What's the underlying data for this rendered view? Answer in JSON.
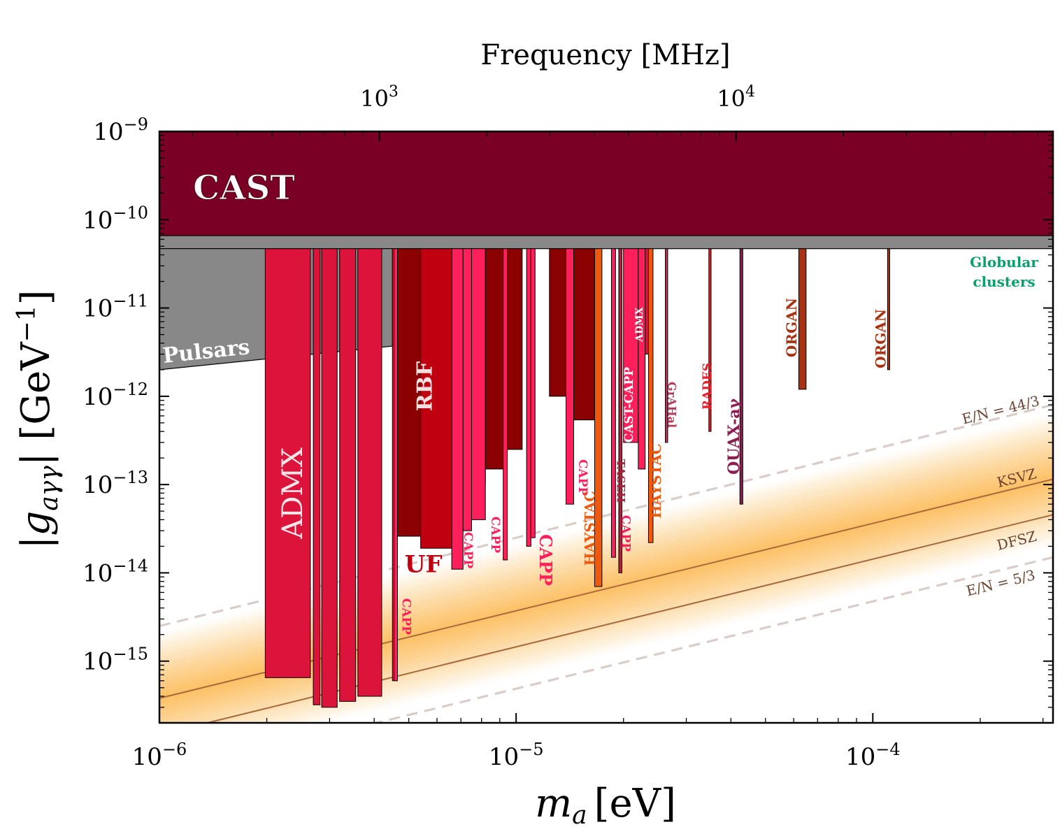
{
  "chart_data": {
    "type": "area",
    "x_scale": "log",
    "y_scale": "log",
    "xlim": [
      1e-06,
      0.00032
    ],
    "ylim": [
      2e-16,
      1e-09
    ],
    "xlabel_main": "m",
    "xlabel_sub": "a",
    "xlabel_unit": "[eV]",
    "ylabel_text": "|g",
    "ylabel_sub": "aγγ",
    "ylabel_unit": "| [GeV",
    "ylabel_unit_exp": "−1",
    "ylabel_unit_close": "]",
    "top_axis_label": "Frequency [MHz]",
    "x_ticks": [
      {
        "value": 1e-06,
        "base": "10",
        "exp": "−6"
      },
      {
        "value": 1e-05,
        "base": "10",
        "exp": "−5"
      },
      {
        "value": 0.0001,
        "base": "10",
        "exp": "−4"
      }
    ],
    "top_ticks": [
      {
        "value": 1000,
        "base": "10",
        "exp": "3"
      },
      {
        "value": 10000,
        "base": "10",
        "exp": "4"
      }
    ],
    "y_ticks": [
      {
        "value": 1e-09,
        "base": "10",
        "exp": "−9"
      },
      {
        "value": 1e-10,
        "base": "10",
        "exp": "−10"
      },
      {
        "value": 1e-11,
        "base": "10",
        "exp": "−11"
      },
      {
        "value": 1e-12,
        "base": "10",
        "exp": "−12"
      },
      {
        "value": 1e-13,
        "base": "10",
        "exp": "−13"
      },
      {
        "value": 1e-14,
        "base": "10",
        "exp": "−14"
      },
      {
        "value": 1e-15,
        "base": "10",
        "exp": "−15"
      }
    ],
    "hz_per_ev": 241800000000000.0,
    "colors": {
      "CAST": "#7b0025",
      "globular": "#0aa06e",
      "pulsars": "#069419",
      "ADMX": "#dc143c",
      "RBF": "#8b0000",
      "UF": "#c00010",
      "CAPP": "#ff1f5b",
      "HAYSTAC": "#ed5a0f",
      "ORGAN": "#a83212",
      "QUAX": "#8e1e52",
      "RADES": "#e6202a",
      "GrAHal": "#b33c5c",
      "TASEH": "#a8243e",
      "band": "#fdbb58",
      "model_line": "#a66a3c",
      "dashed_line": "#d8cdc8"
    },
    "regions": [
      {
        "name": "CAST",
        "label": "CAST",
        "x": [
          1e-06,
          0.00032
        ],
        "y_upper": 1e-09,
        "y_lower": 6.6e-11
      },
      {
        "name": "Globular clusters",
        "label": "Globular",
        "label2": "clusters",
        "x": [
          1e-06,
          0.00032
        ],
        "y_upper": 6.6e-11,
        "y_lower": 4.7e-11
      },
      {
        "name": "Pulsars",
        "label": "Pulsars",
        "polygon": [
          [
            1e-06,
            4.7e-11
          ],
          [
            4.5e-06,
            4.7e-11
          ],
          [
            4.5e-06,
            3.7e-12
          ],
          [
            1e-06,
            2e-12
          ]
        ]
      },
      {
        "name": "ADMX",
        "label": "ADMX",
        "bars": [
          [
            1.98e-06,
            2.65e-06,
            6.5e-16
          ],
          [
            2.7e-06,
            2.82e-06,
            3.2e-16
          ],
          [
            2.85e-06,
            3.15e-06,
            3e-16
          ],
          [
            3.2e-06,
            3.55e-06,
            3.5e-16
          ],
          [
            3.6e-06,
            4.2e-06,
            4e-16
          ],
          [
            4.5e-06,
            4.6e-06,
            6e-16
          ]
        ]
      },
      {
        "name": "RBF",
        "label": "RBF",
        "bars": [
          [
            4.62e-06,
            7e-06,
            2.6e-14
          ],
          [
            7e-06,
            8.2e-06,
            1e-13
          ],
          [
            8.2e-06,
            9.3e-06,
            1.5e-13
          ],
          [
            9.3e-06,
            1.04e-05,
            2.5e-13
          ],
          [
            1.24e-05,
            1.39e-05,
            1e-12
          ],
          [
            1.43e-05,
            1.7e-05,
            5.4e-13
          ]
        ]
      },
      {
        "name": "UF",
        "label": "UF",
        "bars": [
          [
            5.4e-06,
            6.6e-06,
            1.9e-14
          ]
        ]
      },
      {
        "name": "ADMX high",
        "label": "ADMX",
        "bars": [
          [
            2.15e-05,
            2.35e-05,
            3e-12
          ]
        ]
      },
      {
        "name": "CAPP",
        "bars": [
          [
            4.55e-06,
            4.65e-06,
            6e-16
          ],
          [
            6.6e-06,
            7.1e-06,
            1.1e-14
          ],
          [
            7.1e-06,
            7.5e-06,
            3e-14
          ],
          [
            7.5e-06,
            8.2e-06,
            4e-14
          ],
          [
            9.2e-06,
            9.45e-06,
            1.4e-14
          ],
          [
            1.07e-05,
            1.1e-05,
            2e-14
          ],
          [
            1.1e-05,
            1.13e-05,
            2.5e-14
          ],
          [
            1.38e-05,
            1.45e-05,
            6e-14
          ],
          [
            1.85e-05,
            1.9e-05,
            1.5e-14
          ],
          [
            2e-05,
            2.2e-05,
            3e-13
          ],
          [
            2.2e-05,
            2.3e-05,
            1.5e-13
          ]
        ]
      },
      {
        "name": "HAYSTAC",
        "bars": [
          [
            1.66e-05,
            1.74e-05,
            7e-15
          ],
          [
            2.35e-05,
            2.42e-05,
            2.2e-14
          ]
        ]
      },
      {
        "name": "TASEH",
        "bars": [
          [
            1.94e-05,
            1.98e-05,
            1e-14
          ]
        ]
      },
      {
        "name": "GrAHal",
        "bars": [
          [
            2.62e-05,
            2.66e-05,
            3e-13
          ]
        ]
      },
      {
        "name": "RADES",
        "bars": [
          [
            3.47e-05,
            3.52e-05,
            4e-13
          ]
        ]
      },
      {
        "name": "QUAX",
        "bars": [
          [
            4.24e-05,
            4.32e-05,
            6e-14
          ]
        ]
      },
      {
        "name": "ORGAN",
        "bars": [
          [
            6.2e-05,
            6.5e-05,
            1.2e-12
          ],
          [
            0.00011,
            0.0001115,
            2e-12
          ]
        ]
      }
    ],
    "labels": [
      {
        "text": "ADMX",
        "x": 2.4e-06,
        "y": 8e-14,
        "rot": -90,
        "size": 40,
        "color": "#f5e6ea",
        "weight": "normal"
      },
      {
        "text": "RBF",
        "x": 5.6e-06,
        "y": 1.3e-12,
        "rot": -90,
        "size": 30,
        "color": "#f2e0e0",
        "weight": "bold"
      },
      {
        "text": "UF",
        "x": 5.5e-06,
        "y": 1.2e-14,
        "rot": 0,
        "size": 34,
        "color": "#c00010",
        "weight": "bold"
      },
      {
        "text": "CAPP",
        "x": 4.9e-06,
        "y": 3.2e-15,
        "rot": 90,
        "size": 17,
        "color": "#ff1f5b",
        "weight": "bold"
      },
      {
        "text": "CAPP",
        "x": 7.3e-06,
        "y": 1.8e-14,
        "rot": 90,
        "size": 17,
        "color": "#ff1f5b",
        "weight": "bold"
      },
      {
        "text": "CAPP",
        "x": 8.7e-06,
        "y": 2.7e-14,
        "rot": 90,
        "size": 17,
        "color": "#ff1f5b",
        "weight": "bold"
      },
      {
        "text": "CAPP",
        "x": 1.2e-05,
        "y": 1.4e-14,
        "rot": 90,
        "size": 24,
        "color": "#ff1f5b",
        "weight": "bold"
      },
      {
        "text": "CAPP",
        "x": 1.53e-05,
        "y": 1.2e-13,
        "rot": 90,
        "size": 17,
        "color": "#ff1f5b",
        "weight": "bold"
      },
      {
        "text": "HAYSTAC",
        "x": 1.62e-05,
        "y": 3.2e-14,
        "rot": -90,
        "size": 20,
        "color": "#ed5a0f",
        "weight": "bold"
      },
      {
        "text": "TASEH",
        "x": 1.96e-05,
        "y": 1.1e-13,
        "rot": 90,
        "size": 16,
        "color": "#a8243e",
        "weight": "bold"
      },
      {
        "text": "CAPP",
        "x": 2.02e-05,
        "y": 2.8e-14,
        "rot": 90,
        "size": 17,
        "color": "#ff1f5b",
        "weight": "bold"
      },
      {
        "text": "CAST-CAPP",
        "x": 2.08e-05,
        "y": 8e-13,
        "rot": -90,
        "size": 17,
        "color": "#ffffff",
        "weight": "bold"
      },
      {
        "text": "ADMX",
        "x": 2.22e-05,
        "y": 6.5e-12,
        "rot": -90,
        "size": 14,
        "color": "#ffffff",
        "weight": "bold"
      },
      {
        "text": "HAYSTAC",
        "x": 2.48e-05,
        "y": 1.1e-13,
        "rot": -90,
        "size": 20,
        "color": "#ed5a0f",
        "weight": "bold"
      },
      {
        "text": "GrAHal",
        "x": 2.72e-05,
        "y": 8e-13,
        "rot": 90,
        "size": 16,
        "color": "#b33c5c",
        "weight": "bold"
      },
      {
        "text": "RADES",
        "x": 3.45e-05,
        "y": 1.3e-12,
        "rot": -90,
        "size": 17,
        "color": "#e6202a",
        "weight": "bold"
      },
      {
        "text": "QUAX-aγ",
        "x": 4.1e-05,
        "y": 3.5e-13,
        "rot": -90,
        "size": 22,
        "color": "#8e1e52",
        "weight": "bold"
      },
      {
        "text": "ORGAN",
        "x": 5.95e-05,
        "y": 6e-12,
        "rot": -90,
        "size": 20,
        "color": "#a83212",
        "weight": "bold"
      },
      {
        "text": "ORGAN",
        "x": 0.000106,
        "y": 4.5e-12,
        "rot": -90,
        "size": 20,
        "color": "#a83212",
        "weight": "bold"
      }
    ],
    "models": [
      {
        "name": "E/N = 44/3",
        "label": "E/N = 44/3",
        "style": "dashed",
        "points": [
          [
            1e-06,
            2.5e-15
          ],
          [
            0.00032,
            8e-13
          ]
        ],
        "label_x": 0.00023,
        "label_y": 6.2e-13
      },
      {
        "name": "KSVZ",
        "label": "KSVZ",
        "style": "solid",
        "points": [
          [
            1e-06,
            3.8e-16
          ],
          [
            0.00032,
            1.15e-13
          ]
        ],
        "label_x": 0.000255,
        "label_y": 1.05e-13
      },
      {
        "name": "DFSZ",
        "label": "DFSZ",
        "style": "solid",
        "points": [
          [
            1e-06,
            1.47e-16
          ],
          [
            0.00032,
            4.55e-14
          ]
        ],
        "label_x": 0.000255,
        "label_y": 2.05e-14
      },
      {
        "name": "E/N = 5/3",
        "label": "E/N = 5/3",
        "style": "dashed",
        "points": [
          [
            1e-06,
            5e-17
          ],
          [
            0.00032,
            1.5e-14
          ]
        ],
        "label_x": 0.00023,
        "label_y": 6.8e-15
      }
    ],
    "band": {
      "center_low": [
        1e-06,
        3.8e-16
      ],
      "center_high": [
        0.00032,
        1.15e-13
      ],
      "log_halfwidth": 0.75
    }
  }
}
